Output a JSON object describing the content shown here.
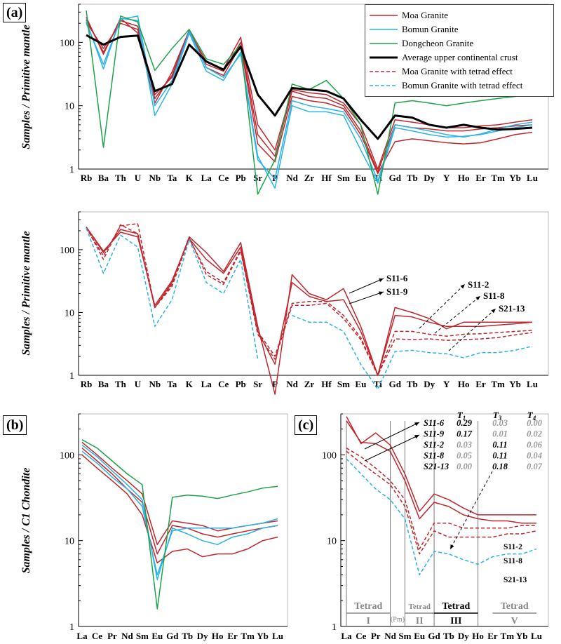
{
  "labels": {
    "a": "(a)",
    "b": "(b)",
    "c": "(c)"
  },
  "colors": {
    "moa": "#c0262d",
    "bomun": "#29b3e6",
    "dongcheon": "#1fa34a",
    "ucc": "#000000"
  },
  "legend": [
    {
      "label": "Moa Granite",
      "color": "#c0262d",
      "dash": false,
      "width": 1.5
    },
    {
      "label": "Bomun Granite",
      "color": "#29b3e6",
      "dash": false,
      "width": 1.5
    },
    {
      "label": "Dongcheon Granite",
      "color": "#1fa34a",
      "dash": false,
      "width": 1.5
    },
    {
      "label": "Average upper continental crust",
      "color": "#000000",
      "dash": false,
      "width": 3
    },
    {
      "label": "Moa Granite with tetrad effect",
      "color": "#c0262d",
      "dash": true,
      "width": 1.5
    },
    {
      "label": "Bomun Granite with tetrad effect",
      "color": "#29b3e6",
      "dash": true,
      "width": 1.5
    }
  ],
  "chart_data": [
    {
      "id": "a-top",
      "type": "line",
      "ylabel": "Samples / Primitive mantle",
      "yscale": "log",
      "ylim": [
        1,
        400
      ],
      "yticks": [
        1,
        10,
        100
      ],
      "categories": [
        "Rb",
        "Ba",
        "Th",
        "U",
        "Nb",
        "Ta",
        "K",
        "La",
        "Ce",
        "Pb",
        "Sr",
        "P",
        "Nd",
        "Zr",
        "Hf",
        "Sm",
        "Eu",
        "Ti",
        "Gd",
        "Tb",
        "Dy",
        "Y",
        "Ho",
        "Er",
        "Tm",
        "Yb",
        "Lu"
      ],
      "series": [
        {
          "name": "Moa Granite",
          "color": "#c0262d",
          "values": [
            230,
            70,
            220,
            180,
            13,
            30,
            150,
            50,
            38,
            120,
            5,
            2,
            18,
            16,
            15,
            11,
            5,
            1,
            6,
            5.5,
            5,
            4.5,
            4.5,
            4.8,
            5,
            5.5,
            6
          ]
        },
        {
          "name": "Moa Granite",
          "color": "#c0262d",
          "values": [
            210,
            80,
            200,
            160,
            15,
            28,
            145,
            45,
            35,
            100,
            3.5,
            1.6,
            17,
            14,
            13,
            10,
            4,
            0.9,
            5,
            4.5,
            4.3,
            4,
            4,
            4.3,
            4.5,
            4.8,
            5
          ]
        },
        {
          "name": "Moa Granite",
          "color": "#c0262d",
          "values": [
            250,
            65,
            240,
            140,
            11,
            34,
            155,
            40,
            30,
            90,
            2.5,
            1.3,
            14,
            12,
            11,
            9,
            3.5,
            0.85,
            2.7,
            3,
            2.8,
            2.6,
            2.5,
            2.6,
            3,
            3.5,
            3.8
          ]
        },
        {
          "name": "Bomun Granite",
          "color": "#29b3e6",
          "values": [
            220,
            38,
            240,
            220,
            7,
            22,
            140,
            35,
            25,
            70,
            1.6,
            0.5,
            10,
            8,
            8,
            7,
            2,
            0.6,
            4.5,
            4,
            3.5,
            3.2,
            3.3,
            3.5,
            4,
            4.5,
            5
          ]
        },
        {
          "name": "Bomun Granite",
          "color": "#29b3e6",
          "values": [
            200,
            45,
            230,
            260,
            10,
            25,
            150,
            40,
            28,
            65,
            1.4,
            0.7,
            12,
            10,
            9,
            8,
            3,
            0.65,
            5,
            4.5,
            4,
            3.5,
            3.2,
            3.6,
            4.3,
            5,
            5.5
          ]
        },
        {
          "name": "Dongcheon Granite",
          "color": "#1fa34a",
          "values": [
            320,
            2.2,
            260,
            210,
            36,
            80,
            160,
            55,
            45,
            90,
            0.4,
            1.4,
            22,
            18,
            25,
            13,
            5,
            0.4,
            11,
            12,
            11,
            10,
            11,
            12,
            13,
            14,
            15
          ]
        },
        {
          "name": "Average upper continental crust",
          "color": "#000000",
          "width": 3,
          "values": [
            130,
            92,
            122,
            128,
            17,
            22,
            92,
            50,
            37,
            85,
            15,
            7,
            19,
            18,
            17,
            13,
            6,
            3,
            7,
            6.5,
            5,
            4.5,
            5,
            4.5,
            4.2,
            4.3,
            4.5
          ]
        }
      ]
    },
    {
      "id": "a-bottom",
      "type": "line",
      "ylabel": "Samples / Primitive mantle",
      "yscale": "log",
      "ylim": [
        1,
        400
      ],
      "yticks": [
        1,
        10,
        100
      ],
      "categories": [
        "Rb",
        "Ba",
        "Th",
        "U",
        "Nb",
        "Ta",
        "K",
        "La",
        "Ce",
        "Pb",
        "Sr",
        "P",
        "Nd",
        "Zr",
        "Hf",
        "Sm",
        "Eu",
        "Ti",
        "Gd",
        "Tb",
        "Dy",
        "Y",
        "Ho",
        "Er",
        "Tm",
        "Yb",
        "Lu"
      ],
      "series": [
        {
          "name": "S11-6",
          "color": "#c0262d",
          "values": [
            230,
            90,
            210,
            180,
            12,
            30,
            160,
            90,
            45,
            130,
            6,
            0.5,
            40,
            20,
            16,
            24,
            6,
            1,
            12,
            10,
            8,
            5.5,
            7,
            7,
            7,
            7,
            7
          ]
        },
        {
          "name": "S11-9",
          "color": "#c0262d",
          "values": [
            230,
            95,
            190,
            160,
            13,
            32,
            150,
            70,
            42,
            110,
            5,
            1.5,
            30,
            18,
            15,
            16,
            5,
            1,
            9,
            8.5,
            7,
            6,
            6,
            6,
            6.3,
            6.6,
            7
          ]
        },
        {
          "name": "S11-2",
          "color": "#c0262d",
          "dash": true,
          "values": [
            220,
            80,
            240,
            260,
            12,
            26,
            150,
            45,
            30,
            100,
            5,
            2,
            14,
            15,
            15,
            9,
            4,
            1,
            5,
            5,
            4.5,
            4.2,
            4.5,
            4.6,
            4.8,
            5,
            5.2
          ]
        },
        {
          "name": "S11-8",
          "color": "#c0262d",
          "dash": true,
          "values": [
            230,
            70,
            250,
            180,
            12,
            28,
            155,
            40,
            28,
            95,
            4.5,
            1.8,
            13,
            13,
            14,
            8,
            3.7,
            1,
            3.8,
            3.7,
            3.8,
            3.6,
            3.7,
            3.8,
            4,
            4.4,
            4.8
          ]
        },
        {
          "name": "S21-13",
          "color": "#29b3e6",
          "dash": true,
          "values": [
            220,
            42,
            170,
            110,
            6,
            16,
            145,
            30,
            20,
            70,
            1.8,
            null,
            9,
            7,
            7,
            5,
            1.5,
            0.6,
            2.4,
            2.5,
            2.3,
            2.2,
            1.9,
            2.3,
            2.3,
            2.5,
            2.9
          ]
        }
      ],
      "annotations": [
        {
          "text": "S11-6",
          "from": "Sm",
          "to": "Gd"
        },
        {
          "text": "S11-9",
          "from": "Sm",
          "to": "Gd"
        },
        {
          "text": "S11-2",
          "from": "Tb",
          "to": "Y"
        },
        {
          "text": "S11-8",
          "from": "Tb",
          "to": "Ho"
        },
        {
          "text": "S21-13",
          "from": "Dy",
          "to": "Er"
        }
      ]
    },
    {
      "id": "b",
      "type": "line",
      "ylabel": "Samples / C1 Chondite",
      "yscale": "log",
      "ylim": [
        1,
        300
      ],
      "yticks": [
        1,
        10,
        100
      ],
      "categories": [
        "La",
        "Ce",
        "Pr",
        "Nd",
        "Sm",
        "Eu",
        "Gd",
        "Tb",
        "Dy",
        "Ho",
        "Er",
        "Tm",
        "Yb",
        "Lu"
      ],
      "series": [
        {
          "name": "Moa Granite",
          "color": "#c0262d",
          "values": [
            140,
            100,
            70,
            50,
            35,
            9,
            17,
            16,
            15,
            13,
            14,
            15,
            16,
            17
          ]
        },
        {
          "name": "Moa Granite",
          "color": "#c0262d",
          "values": [
            120,
            85,
            60,
            40,
            28,
            7,
            15,
            14,
            12,
            11,
            12,
            13,
            14,
            15
          ]
        },
        {
          "name": "Moa Granite",
          "color": "#c0262d",
          "values": [
            100,
            70,
            50,
            35,
            20,
            5.5,
            7.5,
            8,
            6.5,
            7,
            7,
            8,
            10,
            11
          ]
        },
        {
          "name": "Bomun Granite",
          "color": "#29b3e6",
          "values": [
            130,
            95,
            65,
            45,
            30,
            3.5,
            14,
            12,
            10,
            9,
            11,
            12,
            14,
            15
          ]
        },
        {
          "name": "Bomun Granite",
          "color": "#29b3e6",
          "values": [
            110,
            80,
            55,
            40,
            25,
            4,
            13,
            14,
            14,
            14,
            14,
            15,
            16,
            18
          ]
        },
        {
          "name": "Dongcheon Granite",
          "color": "#1fa34a",
          "values": [
            150,
            120,
            85,
            60,
            45,
            1.6,
            32,
            34,
            33,
            31,
            34,
            37,
            41,
            43
          ]
        }
      ]
    },
    {
      "id": "c",
      "type": "line",
      "yscale": "log",
      "ylim": [
        1,
        300
      ],
      "yticks": [
        1,
        10,
        100
      ],
      "categories": [
        "La",
        "Ce",
        "Pr",
        "Nd",
        "Sm",
        "Eu",
        "Gd",
        "Tb",
        "Dy",
        "Ho",
        "Er",
        "Tm",
        "Yb",
        "Lu"
      ],
      "series": [
        {
          "name": "S11-6",
          "color": "#c0262d",
          "values": [
            280,
            135,
            180,
            130,
            60,
            22,
            35,
            30,
            24,
            20,
            20,
            20,
            20,
            20
          ]
        },
        {
          "name": "S11-9",
          "color": "#c0262d",
          "values": [
            250,
            140,
            135,
            110,
            50,
            18,
            28,
            25,
            20,
            18,
            17,
            17,
            16,
            16
          ]
        },
        {
          "name": "S11-2",
          "color": "#c0262d",
          "dash": true,
          "values": [
            120,
            95,
            70,
            50,
            30,
            8,
            16,
            16,
            14,
            14,
            14,
            14,
            15,
            15
          ]
        },
        {
          "name": "S11-8",
          "color": "#c0262d",
          "dash": true,
          "values": [
            110,
            80,
            60,
            45,
            25,
            7,
            13,
            11,
            11,
            11,
            11,
            12,
            12,
            13
          ]
        },
        {
          "name": "S21-13",
          "color": "#29b3e6",
          "dash": true,
          "values": [
            90,
            60,
            40,
            30,
            18,
            4,
            7.5,
            7,
            6,
            5.3,
            6.5,
            7,
            7,
            8
          ]
        }
      ],
      "table": {
        "headers": [
          "T1",
          "T3",
          "T4"
        ],
        "rows": [
          {
            "name": "S11-6",
            "t1": "0.29",
            "t3": "0.03",
            "t4": "0.00"
          },
          {
            "name": "S11-9",
            "t1": "0.17",
            "t3": "0.01",
            "t4": "0.02"
          },
          {
            "name": "S11-2",
            "t1": "0.03",
            "t3": "0.11",
            "t4": "0.06"
          },
          {
            "name": "S11-8",
            "t1": "0.05",
            "t3": "0.11",
            "t4": "0.04"
          },
          {
            "name": "S21-13",
            "t1": "0.00",
            "t3": "0.18",
            "t4": "0.07"
          }
        ]
      },
      "tetrads": [
        {
          "title": "Tetrad",
          "roman": "I",
          "from": "La",
          "to": "Nd"
        },
        {
          "title": "(Pm)",
          "roman": "",
          "from": "Nd",
          "to": "Sm"
        },
        {
          "title": "Tetrad",
          "roman": "II",
          "from": "Sm",
          "to": "Gd"
        },
        {
          "title": "Tetrad",
          "roman": "III",
          "from": "Gd",
          "to": "Ho"
        },
        {
          "title": "Tetrad",
          "roman": "V",
          "from": "Er",
          "to": "Lu"
        }
      ],
      "line_labels": [
        "S11-2",
        "S11-8",
        "S21-13"
      ]
    }
  ]
}
